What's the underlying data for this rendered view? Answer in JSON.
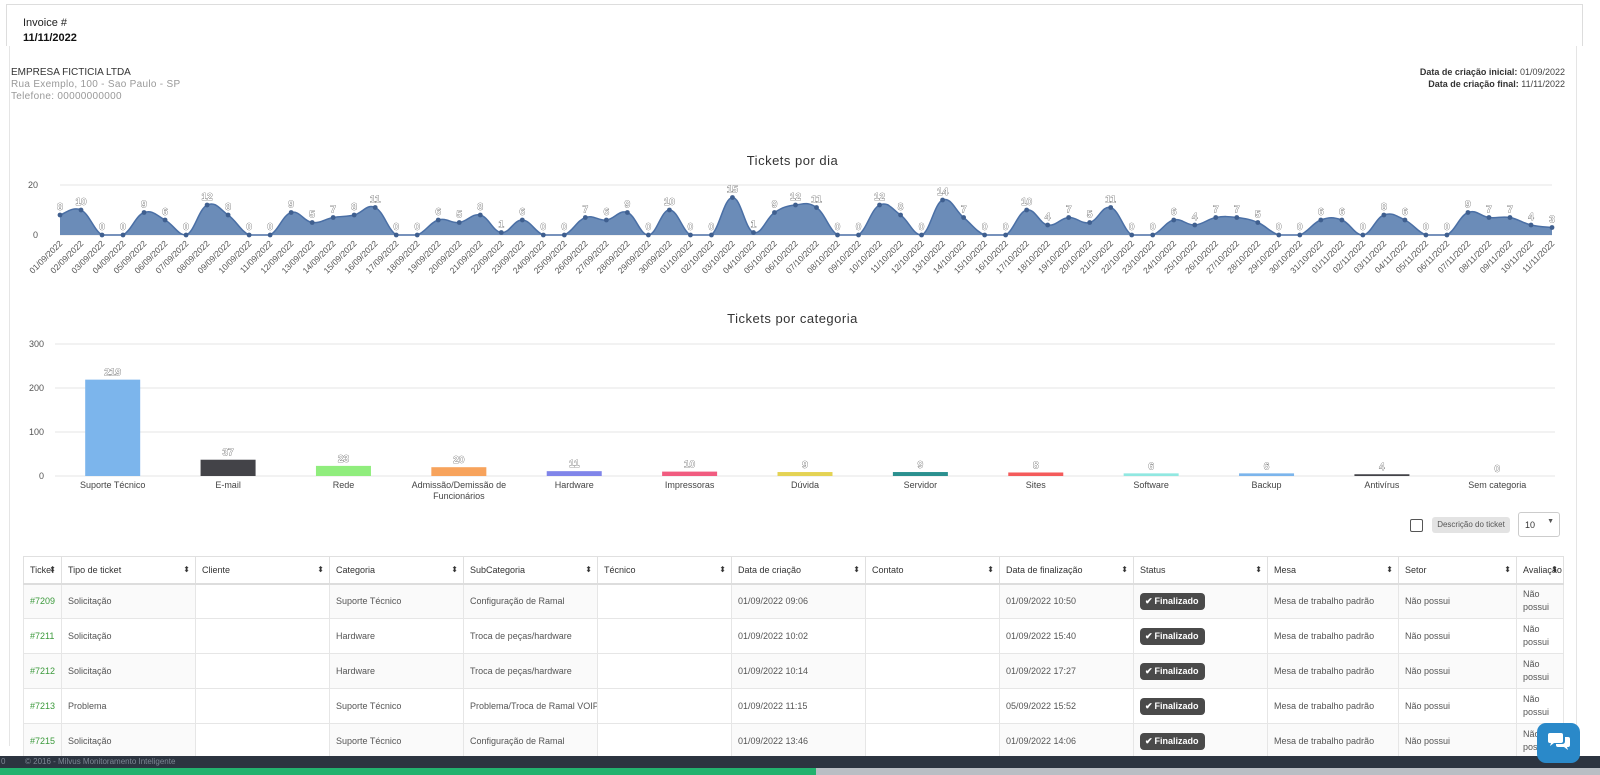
{
  "invoice": {
    "label": "Invoice #",
    "date": "11/11/2022"
  },
  "company": {
    "name": "EMPRESA FICTICIA LTDA",
    "address": "Rua Exemplo, 100 - Sao Paulo - SP",
    "phone": "Telefone: 00000000000"
  },
  "period": {
    "start_label": "Data de criação inicial:",
    "start_value": "01/09/2022",
    "end_label": "Data de criação final:",
    "end_value": "11/11/2022"
  },
  "chart_data": [
    {
      "type": "area",
      "title": "Tickets por dia",
      "color": "#6b8cb8",
      "ylim": [
        0,
        20
      ],
      "yticks": [
        0,
        20
      ],
      "x": [
        "01/09/2022",
        "02/09/2022",
        "03/09/2022",
        "04/09/2022",
        "05/09/2022",
        "06/09/2022",
        "07/09/2022",
        "08/09/2022",
        "09/09/2022",
        "10/09/2022",
        "11/09/2022",
        "12/09/2022",
        "13/09/2022",
        "14/09/2022",
        "15/09/2022",
        "16/09/2022",
        "17/09/2022",
        "18/09/2022",
        "19/09/2022",
        "20/09/2022",
        "21/09/2022",
        "22/09/2022",
        "23/09/2022",
        "24/09/2022",
        "25/09/2022",
        "26/09/2022",
        "27/09/2022",
        "28/09/2022",
        "29/09/2022",
        "30/09/2022",
        "01/10/2022",
        "02/10/2022",
        "03/10/2022",
        "04/10/2022",
        "05/10/2022",
        "06/10/2022",
        "07/10/2022",
        "08/10/2022",
        "09/10/2022",
        "10/10/2022",
        "11/10/2022",
        "12/10/2022",
        "13/10/2022",
        "14/10/2022",
        "15/10/2022",
        "16/10/2022",
        "17/10/2022",
        "18/10/2022",
        "19/10/2022",
        "20/10/2022",
        "21/10/2022",
        "22/10/2022",
        "23/10/2022",
        "24/10/2022",
        "25/10/2022",
        "26/10/2022",
        "27/10/2022",
        "28/10/2022",
        "29/10/2022",
        "30/10/2022",
        "31/10/2022",
        "01/11/2022",
        "02/11/2022",
        "03/11/2022",
        "04/11/2022",
        "05/11/2022",
        "06/11/2022",
        "07/11/2022",
        "08/11/2022",
        "09/11/2022",
        "10/11/2022",
        "11/11/2022"
      ],
      "values": [
        8,
        10,
        0,
        0,
        9,
        6,
        0,
        12,
        8,
        0,
        0,
        9,
        5,
        7,
        8,
        11,
        0,
        0,
        6,
        5,
        8,
        1,
        6,
        0,
        0,
        7,
        6,
        9,
        0,
        10,
        0,
        0,
        15,
        1,
        9,
        12,
        11,
        0,
        0,
        12,
        8,
        0,
        14,
        7,
        0,
        0,
        10,
        4,
        7,
        5,
        11,
        0,
        0,
        6,
        4,
        7,
        7,
        5,
        0,
        0,
        6,
        6,
        0,
        8,
        6,
        0,
        0,
        9,
        7,
        7,
        4,
        3
      ]
    },
    {
      "type": "bar",
      "title": "Tickets por categoria",
      "ylim": [
        0,
        300
      ],
      "yticks": [
        0,
        100,
        200,
        300
      ],
      "categories": [
        "Suporte Técnico",
        "E-mail",
        "Rede",
        "Admissão/Demissão de Funcionários",
        "Hardware",
        "Impressoras",
        "Dúvida",
        "Servidor",
        "Sites",
        "Software",
        "Backup",
        "Antivírus",
        "Sem categoria"
      ],
      "values": [
        219,
        37,
        23,
        20,
        11,
        10,
        9,
        9,
        8,
        6,
        6,
        4,
        0
      ],
      "colors": [
        "#7cb5ec",
        "#434348",
        "#90ed7d",
        "#f7a35c",
        "#8085e9",
        "#f15c80",
        "#e4d354",
        "#2b908f",
        "#f45b5b",
        "#91e8e1",
        "#7cb5ec",
        "#434348",
        "#90ed7d"
      ]
    }
  ],
  "controls": {
    "description_button": "Descrição do ticket",
    "page_size": "10"
  },
  "table": {
    "headers": [
      "Ticket",
      "Tipo de ticket",
      "Cliente",
      "Categoria",
      "SubCategoria",
      "Técnico",
      "Data de criação",
      "Contato",
      "Data de finalização",
      "Status",
      "Mesa",
      "Setor",
      "Avaliação"
    ],
    "rows": [
      {
        "id": "#7209",
        "tipo": "Solicitação",
        "cliente": "",
        "categoria": "Suporte Técnico",
        "subcategoria": "Configuração de Ramal",
        "tecnico": "",
        "criacao": "01/09/2022 09:06",
        "contato": "",
        "finalizacao": "01/09/2022 10:50",
        "status": "Finalizado",
        "mesa": "Mesa de trabalho padrão",
        "setor": "Não possui",
        "avaliacao": "Não possui"
      },
      {
        "id": "#7211",
        "tipo": "Solicitação",
        "cliente": "",
        "categoria": "Hardware",
        "subcategoria": "Troca de peças/hardware",
        "tecnico": "",
        "criacao": "01/09/2022 10:02",
        "contato": "",
        "finalizacao": "01/09/2022 15:40",
        "status": "Finalizado",
        "mesa": "Mesa de trabalho padrão",
        "setor": "Não possui",
        "avaliacao": "Não possui"
      },
      {
        "id": "#7212",
        "tipo": "Solicitação",
        "cliente": "",
        "categoria": "Hardware",
        "subcategoria": "Troca de peças/hardware",
        "tecnico": "",
        "criacao": "01/09/2022 10:14",
        "contato": "",
        "finalizacao": "01/09/2022 17:27",
        "status": "Finalizado",
        "mesa": "Mesa de trabalho padrão",
        "setor": "Não possui",
        "avaliacao": "Não possui"
      },
      {
        "id": "#7213",
        "tipo": "Problema",
        "cliente": "",
        "categoria": "Suporte Técnico",
        "subcategoria": "Problema/Troca de Ramal VOIP",
        "tecnico": "",
        "criacao": "01/09/2022 11:15",
        "contato": "",
        "finalizacao": "05/09/2022 15:52",
        "status": "Finalizado",
        "mesa": "Mesa de trabalho padrão",
        "setor": "Não possui",
        "avaliacao": "Não possui"
      },
      {
        "id": "#7215",
        "tipo": "Solicitação",
        "cliente": "",
        "categoria": "Suporte Técnico",
        "subcategoria": "Configuração de Ramal",
        "tecnico": "",
        "criacao": "01/09/2022 13:46",
        "contato": "",
        "finalizacao": "01/09/2022 14:06",
        "status": "Finalizado",
        "mesa": "Mesa de trabalho padrão",
        "setor": "Não possui",
        "avaliacao": "Não possui"
      }
    ]
  },
  "footer": {
    "version": "0",
    "copyright": "© 2016 - Milvus Monitoramento Inteligente"
  },
  "page_progress": 0.51,
  "icons": {
    "sort": "sort-icon",
    "check": "check-icon",
    "chat": "chat-icon",
    "dropdown": "chevron-down-icon"
  }
}
